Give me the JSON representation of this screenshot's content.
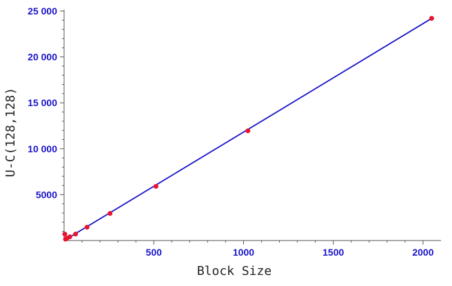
{
  "chart_data": {
    "type": "scatter",
    "xlabel": "Block Size",
    "ylabel": "U-C(128,128)",
    "xlim": [
      0,
      2100
    ],
    "ylim": [
      0,
      25000
    ],
    "x_ticks": [
      500,
      1000,
      1500,
      2000
    ],
    "x_tick_labels": [
      "500",
      "1000",
      "1500",
      "2000"
    ],
    "y_ticks": [
      5000,
      10000,
      15000,
      20000,
      25000
    ],
    "y_tick_labels": [
      "5000",
      "10 000",
      "15 000",
      "20 000",
      "25 000"
    ],
    "grid": false,
    "series": [
      {
        "kind": "points",
        "x": [
          4,
          8,
          16,
          32,
          64,
          128,
          256,
          512,
          1024,
          2048
        ],
        "y": [
          700,
          150,
          250,
          400,
          700,
          1450,
          2950,
          5900,
          11950,
          24200
        ]
      },
      {
        "kind": "fit-line",
        "x": [
          0,
          2048
        ],
        "y": [
          0,
          24200
        ]
      }
    ],
    "colors": {
      "points": "#e8142f",
      "line": "#1a14c8",
      "tick_labels": "#1a14c8",
      "axes": "#555555"
    }
  }
}
